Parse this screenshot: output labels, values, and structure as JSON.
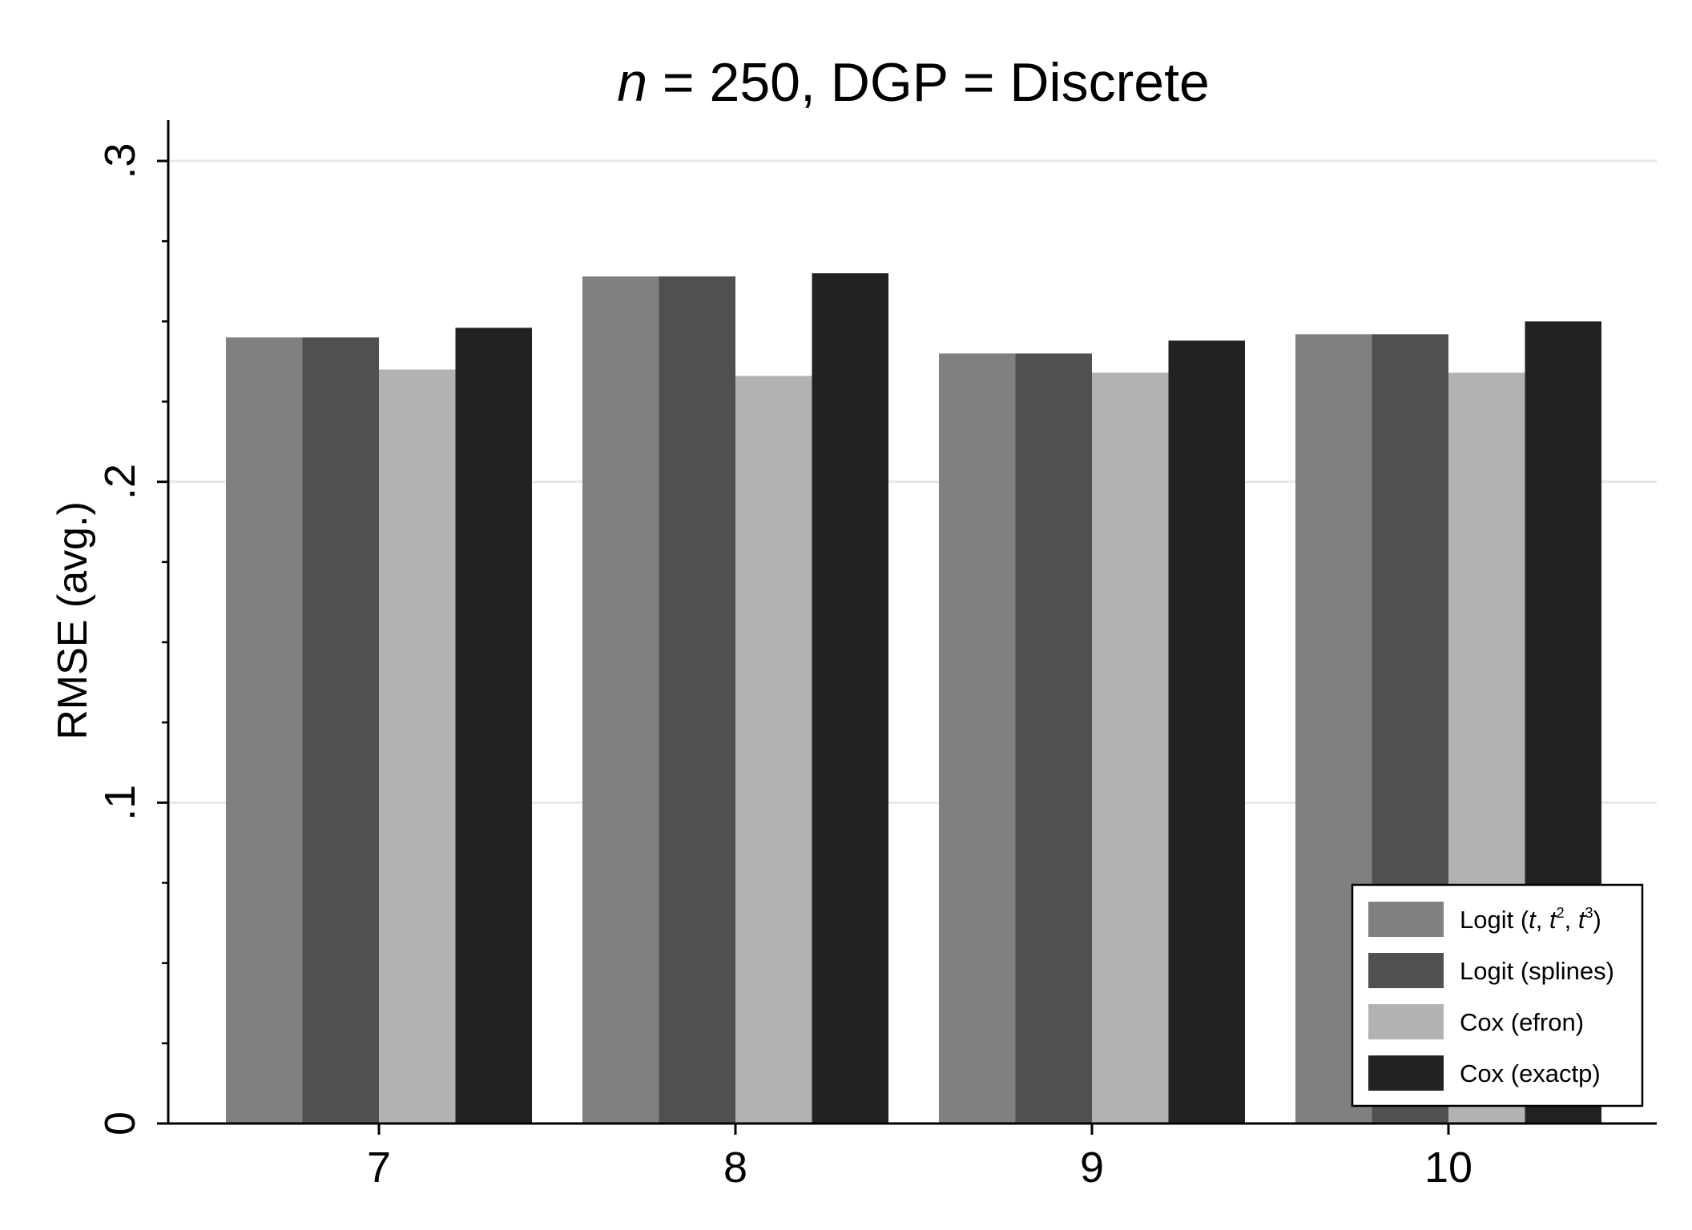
{
  "chart_data": {
    "type": "bar",
    "title": {
      "italic": "n",
      "rest": " = 250, DGP = Discrete"
    },
    "xlabel": "",
    "ylabel": "RMSE (avg.)",
    "ylim": [
      0,
      0.3
    ],
    "yticks": [
      {
        "value": 0,
        "label": "0"
      },
      {
        "value": 0.1,
        "label": ".1"
      },
      {
        "value": 0.2,
        "label": ".2"
      },
      {
        "value": 0.3,
        "label": ".3"
      }
    ],
    "yminor": [
      0.025,
      0.05,
      0.075,
      0.125,
      0.15,
      0.175,
      0.225,
      0.25,
      0.275
    ],
    "grid": true,
    "legend_position": "bottom-right",
    "categories": [
      "7",
      "8",
      "9",
      "10"
    ],
    "series": [
      {
        "name": "Logit (t, t2, t3)",
        "color": "#808080",
        "values": [
          0.245,
          0.264,
          0.24,
          0.246
        ]
      },
      {
        "name": "Logit (splines)",
        "color": "#505050",
        "values": [
          0.245,
          0.264,
          0.24,
          0.246
        ]
      },
      {
        "name": "Cox (efron)",
        "color": "#b2b2b2",
        "values": [
          0.235,
          0.233,
          0.234,
          0.234
        ]
      },
      {
        "name": "Cox (exactp)",
        "color": "#222222",
        "values": [
          0.248,
          0.265,
          0.244,
          0.25
        ]
      }
    ],
    "legend": [
      {
        "parts": [
          "Logit (",
          "t",
          ", ",
          "t",
          "2",
          ", ",
          "t",
          "3",
          ")"
        ]
      },
      {
        "parts": [
          "Logit (splines)"
        ]
      },
      {
        "parts": [
          "Cox (efron)"
        ]
      },
      {
        "parts": [
          "Cox (exactp)"
        ]
      }
    ]
  }
}
